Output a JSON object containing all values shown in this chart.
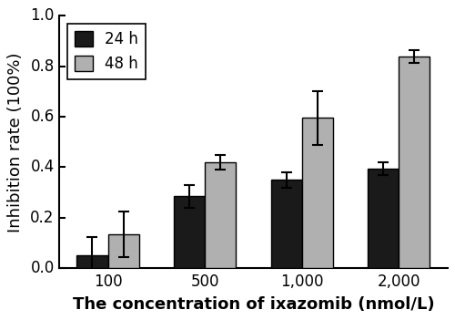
{
  "categories": [
    "100",
    "500",
    "1,000",
    "2,000"
  ],
  "values_24h": [
    0.05,
    0.285,
    0.35,
    0.395
  ],
  "values_48h": [
    0.135,
    0.42,
    0.595,
    0.84
  ],
  "errors_24h": [
    0.075,
    0.045,
    0.03,
    0.025
  ],
  "errors_48h": [
    0.09,
    0.03,
    0.105,
    0.025
  ],
  "color_24h": "#1a1a1a",
  "color_48h": "#b0b0b0",
  "xlabel": "The concentration of ixazomib (nmol/L)",
  "ylabel": "Inhibition rate (100%)",
  "ylim": [
    0.0,
    1.0
  ],
  "yticks": [
    0.0,
    0.2,
    0.4,
    0.6,
    0.8,
    1.0
  ],
  "legend_24h": "24 h",
  "legend_48h": "48 h",
  "bar_width": 0.32,
  "label_fontsize": 13,
  "tick_fontsize": 12,
  "legend_fontsize": 12
}
